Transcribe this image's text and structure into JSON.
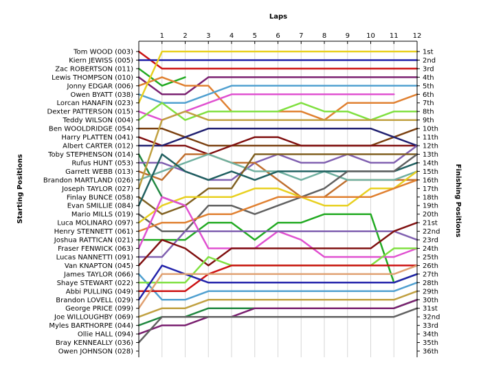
{
  "chart_data": {
    "type": "line",
    "title": "",
    "xlabel": "Laps",
    "ylabel_left": "Starting Positions",
    "ylabel_right": "Finishing Positions",
    "laps": [
      1,
      2,
      3,
      4,
      5,
      6,
      7,
      8,
      9,
      10,
      11,
      12
    ],
    "position_count": 36,
    "position_labels": [
      "1st",
      "2nd",
      "3rd",
      "4th",
      "5th",
      "6th",
      "7th",
      "8th",
      "9th",
      "10th",
      "11th",
      "12th",
      "13th",
      "14th",
      "15th",
      "16th",
      "17th",
      "18th",
      "19th",
      "20th",
      "21st",
      "22nd",
      "23rd",
      "24th",
      "25th",
      "26th",
      "27th",
      "28th",
      "29th",
      "30th",
      "31st",
      "32nd",
      "33rd",
      "34th",
      "35th",
      "36th"
    ],
    "grid": true,
    "series": [
      {
        "name": "Tom WOOD (003)",
        "color": "#cc1111",
        "positions": [
          1,
          3,
          3,
          3,
          3,
          3,
          3,
          3,
          3,
          3,
          3,
          3,
          3
        ]
      },
      {
        "name": "Kiern JEWISS (005)",
        "color": "#2222aa",
        "positions": [
          2,
          2,
          2,
          2,
          2,
          2,
          2,
          2,
          2,
          2,
          2,
          2,
          2
        ]
      },
      {
        "name": "Zac ROBERTSON (011)",
        "color": "#22aa22",
        "positions": [
          3,
          5,
          4,
          null,
          null,
          null,
          null,
          null,
          null,
          null,
          null,
          null,
          null
        ]
      },
      {
        "name": "Lewis THOMPSON (010)",
        "color": "#7a2070",
        "positions": [
          4,
          6,
          6,
          4,
          4,
          4,
          4,
          4,
          4,
          4,
          4,
          4,
          4
        ]
      },
      {
        "name": "Jonny EDGAR (006)",
        "color": "#e08030",
        "positions": [
          5,
          4,
          5,
          5,
          8,
          8,
          8,
          8,
          9,
          7,
          7,
          7,
          6
        ]
      },
      {
        "name": "Owen BYATT (038)",
        "color": "#50a0d0",
        "positions": [
          6,
          7,
          7,
          6,
          5,
          5,
          5,
          5,
          5,
          5,
          5,
          5,
          5
        ]
      },
      {
        "name": "Lorcan HANAFIN (023)",
        "color": "#e8d020",
        "positions": [
          7,
          1,
          1,
          1,
          1,
          1,
          1,
          1,
          1,
          1,
          1,
          1,
          1
        ]
      },
      {
        "name": "Dexter PATTERSON (015)",
        "color": "#e050d0",
        "positions": [
          8,
          9,
          8,
          7,
          6,
          6,
          6,
          6,
          6,
          6,
          6,
          6,
          null
        ]
      },
      {
        "name": "Teddy WILSON (004)",
        "color": "#80e040",
        "positions": [
          9,
          7,
          9,
          8,
          8,
          8,
          8,
          7,
          8,
          8,
          9,
          8,
          8
        ]
      },
      {
        "name": "Ben WOOLDRIDGE (054)",
        "color": "#7a4010",
        "positions": [
          10,
          10,
          11,
          12,
          12,
          12,
          12,
          12,
          12,
          12,
          12,
          11,
          10
        ]
      },
      {
        "name": "Harry PLATTEN (041)",
        "color": "#801010",
        "positions": [
          11,
          12,
          12,
          13,
          12,
          11,
          11,
          12,
          12,
          12,
          12,
          12,
          12
        ]
      },
      {
        "name": "Albert CARTER (012)",
        "color": "#202070",
        "positions": [
          12,
          12,
          11,
          10,
          10,
          10,
          10,
          10,
          10,
          10,
          10,
          11,
          12
        ]
      },
      {
        "name": "Toby STEPHENSON (014)",
        "color": "#208840",
        "positions": [
          13,
          18,
          19,
          null,
          null,
          null,
          null,
          null,
          null,
          null,
          null,
          null,
          null
        ]
      },
      {
        "name": "Rufus HUNT (053)",
        "color": "#8060b0",
        "positions": [
          14,
          14,
          15,
          16,
          16,
          14,
          13,
          14,
          14,
          13,
          14,
          14,
          12
        ]
      },
      {
        "name": "Garrett WEBB (013)",
        "color": "#c07030",
        "positions": [
          15,
          16,
          13,
          13,
          14,
          14,
          16,
          18,
          18,
          16,
          16,
          16,
          16
        ]
      },
      {
        "name": "Brandon MARTLAND (026)",
        "color": "#70b0a0",
        "positions": [
          16,
          15,
          14,
          13,
          14,
          15,
          15,
          16,
          15,
          16,
          16,
          16,
          15
        ]
      },
      {
        "name": "Joseph TAYLOR (027)",
        "color": "#c0a040",
        "positions": [
          17,
          9,
          8,
          9,
          9,
          9,
          9,
          9,
          9,
          9,
          9,
          9,
          9
        ]
      },
      {
        "name": "Finlay BUNCE (058)",
        "color": "#806020",
        "positions": [
          18,
          20,
          19,
          17,
          17,
          13,
          13,
          13,
          13,
          13,
          13,
          13,
          13
        ]
      },
      {
        "name": "Evan SMILLIE (084)",
        "color": "#206060",
        "positions": [
          19,
          13,
          15,
          16,
          15,
          16,
          15,
          15,
          15,
          15,
          15,
          15,
          14
        ]
      },
      {
        "name": "Mario MILLS (019)",
        "color": "#606060",
        "positions": [
          20,
          22,
          22,
          19,
          19,
          20,
          19,
          18,
          17,
          15,
          15,
          15,
          13
        ]
      },
      {
        "name": "Luca MOLINARO (097)",
        "color": "#e8d020",
        "positions": [
          21,
          19,
          18,
          18,
          18,
          17,
          17,
          18,
          19,
          19,
          17,
          17,
          15
        ]
      },
      {
        "name": "Henry STENNETT (061)",
        "color": "#e08030",
        "positions": [
          22,
          21,
          21,
          20,
          20,
          19,
          18,
          18,
          18,
          18,
          18,
          17,
          16
        ]
      },
      {
        "name": "Joshua RATTICAN (021)",
        "color": "#22aa22",
        "positions": [
          23,
          23,
          23,
          21,
          21,
          23,
          21,
          21,
          20,
          20,
          20,
          28,
          27
        ]
      },
      {
        "name": "Fraser FENWICK (063)",
        "color": "#e050d0",
        "positions": [
          24,
          18,
          19,
          24,
          24,
          24,
          22,
          23,
          25,
          25,
          25,
          25,
          24
        ]
      },
      {
        "name": "Lucas NANNETTI (091)",
        "color": "#8060b0",
        "positions": [
          25,
          25,
          22,
          22,
          22,
          22,
          22,
          22,
          22,
          22,
          22,
          22,
          23
        ]
      },
      {
        "name": "Van KNAPTON (045)",
        "color": "#801010",
        "positions": [
          26,
          23,
          24,
          26,
          24,
          24,
          24,
          24,
          24,
          24,
          24,
          22,
          21
        ]
      },
      {
        "name": "James TAYLOR (066)",
        "color": "#50a0d0",
        "positions": [
          27,
          30,
          30,
          29,
          29,
          29,
          29,
          29,
          29,
          29,
          29,
          29,
          28
        ]
      },
      {
        "name": "Shaye STEWART (022)",
        "color": "#80e040",
        "positions": [
          28,
          28,
          28,
          25,
          26,
          26,
          26,
          26,
          26,
          26,
          26,
          24,
          24
        ]
      },
      {
        "name": "Abbi PULLING (049)",
        "color": "#cc1111",
        "positions": [
          29,
          29,
          29,
          27,
          26,
          26,
          26,
          26,
          26,
          26,
          26,
          26,
          26
        ]
      },
      {
        "name": "Brandon LOVELL (029)",
        "color": "#2222aa",
        "positions": [
          30,
          26,
          27,
          28,
          28,
          28,
          28,
          28,
          28,
          28,
          28,
          28,
          27
        ]
      },
      {
        "name": "George PRICE (099)",
        "color": "#e0a070",
        "positions": [
          31,
          27,
          27,
          27,
          27,
          27,
          27,
          27,
          27,
          27,
          27,
          27,
          26
        ]
      },
      {
        "name": "Joe WILLOUGHBY (069)",
        "color": "#c0a040",
        "positions": [
          32,
          31,
          31,
          30,
          30,
          30,
          30,
          30,
          30,
          30,
          30,
          30,
          29
        ]
      },
      {
        "name": "Myles BARTHORPE (044)",
        "color": "#208840",
        "positions": [
          33,
          32,
          32,
          31,
          31,
          31,
          31,
          31,
          31,
          31,
          31,
          31,
          30
        ]
      },
      {
        "name": "Ollie HALL (094)",
        "color": "#7a2070",
        "positions": [
          34,
          33,
          33,
          32,
          32,
          31,
          31,
          31,
          31,
          31,
          31,
          31,
          30
        ]
      },
      {
        "name": "Bray KENNEALLY (036)",
        "color": "#606060",
        "positions": [
          35,
          32,
          32,
          32,
          32,
          32,
          32,
          32,
          32,
          32,
          32,
          32,
          31
        ]
      },
      {
        "name": "Owen JOHNSON (028)",
        "color": "#888888",
        "positions": [
          36,
          null,
          null,
          null,
          null,
          null,
          null,
          null,
          null,
          null,
          null,
          null,
          null
        ]
      }
    ]
  }
}
